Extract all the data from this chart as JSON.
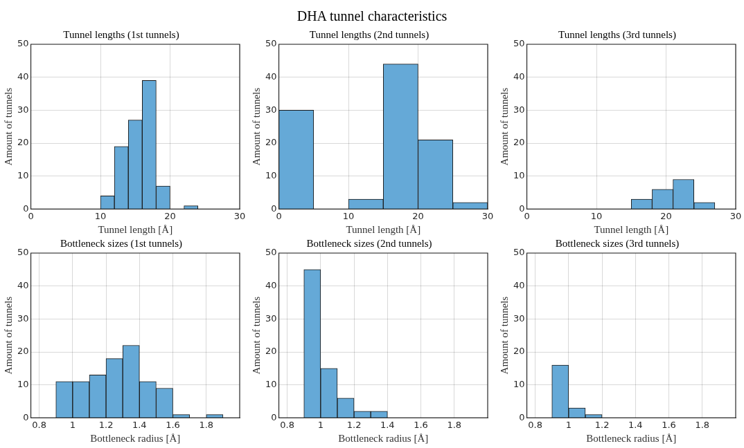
{
  "chart_data": [
    {
      "type": "histogram",
      "annotations": [
        "DHA tunnel characteristics"
      ],
      "title": "Tunnel lengths (1st tunnels)",
      "xlabel": "Tunnel length [Å]",
      "ylabel": "Amount of tunnels",
      "bins": [
        10,
        12,
        14,
        16,
        18,
        20,
        22,
        24
      ],
      "values": [
        4,
        19,
        27,
        39,
        7,
        0,
        1
      ],
      "color": "#65a9d7",
      "xlim": [
        0,
        30
      ],
      "xticks": [
        0,
        10,
        20,
        30
      ],
      "ylim": [
        0,
        50
      ],
      "yticks": [
        0,
        10,
        20,
        30,
        40,
        50
      ],
      "grid": true
    },
    {
      "type": "histogram",
      "title": "Tunnel lengths (2nd tunnels)",
      "xlabel": "Tunnel length [Å]",
      "ylabel": "Amount of tunnels",
      "bins": [
        0,
        5,
        10,
        15,
        20,
        25,
        30
      ],
      "values": [
        30,
        0,
        3,
        44,
        21,
        2
      ],
      "color": "#65a9d7",
      "xlim": [
        0,
        30
      ],
      "xticks": [
        0,
        10,
        20,
        30
      ],
      "ylim": [
        0,
        50
      ],
      "yticks": [
        0,
        10,
        20,
        30,
        40,
        50
      ],
      "grid": true
    },
    {
      "type": "histogram",
      "title": "Tunnel lengths (3rd tunnels)",
      "xlabel": "Tunnel length [Å]",
      "ylabel": "Amount of tunnels",
      "bins": [
        15,
        18,
        21,
        24,
        27
      ],
      "values": [
        3,
        6,
        9,
        2
      ],
      "color": "#65a9d7",
      "xlim": [
        0,
        30
      ],
      "xticks": [
        0,
        10,
        20,
        30
      ],
      "ylim": [
        0,
        50
      ],
      "yticks": [
        0,
        10,
        20,
        30,
        40,
        50
      ],
      "grid": true
    },
    {
      "type": "histogram",
      "title": "Bottleneck sizes (1st tunnels)",
      "xlabel": "Bottleneck radius [Å]",
      "ylabel": "Amount of tunnels",
      "bins": [
        0.9,
        1.0,
        1.1,
        1.2,
        1.3,
        1.4,
        1.5,
        1.6,
        1.7,
        1.8,
        1.9
      ],
      "values": [
        11,
        11,
        13,
        18,
        22,
        11,
        9,
        1,
        0,
        1
      ],
      "color": "#65a9d7",
      "xlim": [
        0.75,
        2
      ],
      "xticks": [
        0.8,
        1,
        1.2,
        1.4,
        1.6,
        1.8
      ],
      "ylim": [
        0,
        50
      ],
      "yticks": [
        0,
        10,
        20,
        30,
        40,
        50
      ],
      "grid": true
    },
    {
      "type": "histogram",
      "title": "Bottleneck sizes (2nd tunnels)",
      "xlabel": "Bottleneck radius [Å]",
      "ylabel": "Amount of tunnels",
      "bins": [
        0.9,
        1.0,
        1.1,
        1.2,
        1.3,
        1.4
      ],
      "values": [
        45,
        15,
        6,
        2,
        2
      ],
      "color": "#65a9d7",
      "xlim": [
        0.75,
        2
      ],
      "xticks": [
        0.8,
        1,
        1.2,
        1.4,
        1.6,
        1.8
      ],
      "ylim": [
        0,
        50
      ],
      "yticks": [
        0,
        10,
        20,
        30,
        40,
        50
      ],
      "grid": true
    },
    {
      "type": "histogram",
      "title": "Bottleneck sizes (3rd tunnels)",
      "xlabel": "Bottleneck radius [Å]",
      "ylabel": "Amount of tunnels",
      "bins": [
        0.9,
        1.0,
        1.1,
        1.2
      ],
      "values": [
        16,
        3,
        1
      ],
      "color": "#65a9d7",
      "xlim": [
        0.75,
        2
      ],
      "xticks": [
        0.8,
        1,
        1.2,
        1.4,
        1.6,
        1.8
      ],
      "ylim": [
        0,
        50
      ],
      "yticks": [
        0,
        10,
        20,
        30,
        40,
        50
      ],
      "grid": true
    }
  ]
}
